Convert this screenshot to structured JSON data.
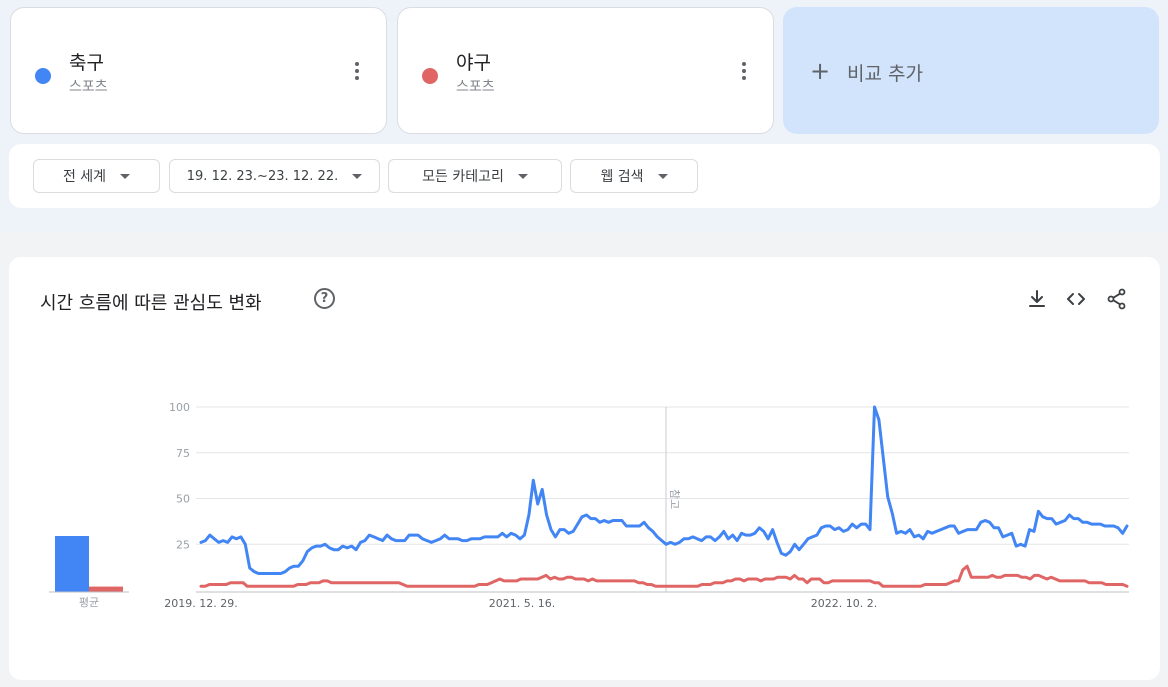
{
  "terms": [
    {
      "name": "축구",
      "category": "스포츠",
      "color": "#4285f4"
    },
    {
      "name": "야구",
      "category": "스포츠",
      "color": "#e06666"
    }
  ],
  "compare": {
    "label": "비교 추가",
    "icon": "plus-icon"
  },
  "filters": {
    "region": "전 세계",
    "date_range": "19. 12. 23.~23. 12. 22.",
    "category": "모든 카테고리",
    "search_type": "웹 검색"
  },
  "chart_section": {
    "title": "시간 흐름에 따른 관심도 변화",
    "actions": [
      "download-icon",
      "embed-icon",
      "share-icon"
    ]
  },
  "chart_data": {
    "type": "line",
    "y_ticks": [
      "100",
      "75",
      "50",
      "25"
    ],
    "ylim": [
      0,
      100
    ],
    "x_tick_labels": [
      "2019. 12. 29.",
      "2021. 5. 16.",
      "2022. 10. 2."
    ],
    "note_label": "참고",
    "average_label": "평균",
    "averages": [
      31,
      3
    ],
    "series": [
      {
        "color": "#4285f4",
        "values": [
          26,
          27,
          30,
          28,
          26,
          27,
          26,
          29,
          28,
          29,
          25,
          12,
          10,
          9,
          9,
          9,
          9,
          9,
          9,
          10,
          12,
          13,
          13,
          16,
          21,
          23,
          24,
          24,
          25,
          23,
          22,
          22,
          24,
          23,
          24,
          22,
          26,
          27,
          30,
          29,
          28,
          27,
          30,
          28,
          27,
          27,
          27,
          30,
          30,
          30,
          28,
          27,
          26,
          27,
          28,
          30,
          28,
          28,
          28,
          27,
          27,
          28,
          28,
          28,
          29,
          29,
          29,
          29,
          31,
          29,
          31,
          30,
          28,
          30,
          41,
          60,
          47,
          55,
          41,
          33,
          29,
          33,
          33,
          31,
          32,
          36,
          40,
          41,
          39,
          39,
          37,
          38,
          37,
          38,
          38,
          38,
          35,
          35,
          35,
          35,
          37,
          34,
          32,
          29,
          27,
          25,
          26,
          25,
          26,
          28,
          28,
          29,
          28,
          27,
          29,
          29,
          27,
          29,
          32,
          28,
          30,
          27,
          31,
          30,
          30,
          31,
          34,
          32,
          28,
          33,
          26,
          20,
          19,
          21,
          25,
          22,
          25,
          28,
          29,
          30,
          34,
          35,
          35,
          33,
          34,
          32,
          33,
          36,
          34,
          36,
          36,
          33,
          100,
          93,
          72,
          51,
          42,
          31,
          32,
          31,
          33,
          29,
          30,
          28,
          32,
          31,
          32,
          33,
          34,
          35,
          35,
          31,
          32,
          33,
          33,
          33,
          37,
          38,
          37,
          34,
          34,
          29,
          30,
          31,
          24,
          25,
          24,
          33,
          32,
          43,
          40,
          39,
          39,
          36,
          37,
          38,
          41,
          39,
          39,
          37,
          37,
          36,
          36,
          36,
          35,
          35,
          35,
          34,
          31,
          35
        ]
      },
      {
        "color": "#e06666",
        "values": [
          2,
          2,
          3,
          3,
          3,
          3,
          3,
          4,
          4,
          4,
          4,
          2,
          2,
          2,
          2,
          2,
          2,
          2,
          2,
          2,
          2,
          2,
          2,
          3,
          3,
          3,
          4,
          4,
          4,
          5,
          5,
          4,
          4,
          4,
          4,
          4,
          4,
          4,
          4,
          4,
          4,
          4,
          4,
          4,
          4,
          4,
          4,
          4,
          3,
          2,
          2,
          2,
          2,
          2,
          2,
          2,
          2,
          2,
          2,
          2,
          2,
          2,
          2,
          2,
          2,
          2,
          3,
          3,
          3,
          4,
          5,
          6,
          5,
          5,
          5,
          5,
          6,
          6,
          6,
          6,
          6,
          7,
          8,
          6,
          7,
          6,
          6,
          7,
          7,
          6,
          6,
          6,
          5,
          6,
          5,
          5,
          5,
          5,
          5,
          5,
          5,
          5,
          5,
          5,
          4,
          4,
          3,
          3,
          2,
          2,
          2,
          2,
          2,
          2,
          2,
          2,
          2,
          2,
          2,
          3,
          3,
          3,
          4,
          4,
          4,
          5,
          5,
          6,
          6,
          5,
          6,
          6,
          6,
          5,
          6,
          6,
          6,
          7,
          7,
          7,
          6,
          8,
          6,
          6,
          4,
          6,
          6,
          6,
          4,
          4,
          5,
          5,
          5,
          5,
          5,
          5,
          5,
          5,
          5,
          5,
          4,
          4,
          2,
          2,
          2,
          2,
          2,
          2,
          2,
          2,
          2,
          2,
          3,
          3,
          3,
          3,
          3,
          3,
          4,
          5,
          5,
          11,
          13,
          7,
          7,
          7,
          7,
          7,
          8,
          7,
          7,
          8,
          8,
          8,
          8,
          7,
          7,
          6,
          8,
          8,
          7,
          6,
          7,
          6,
          5,
          5,
          5,
          5,
          5,
          5,
          5,
          4,
          4,
          4,
          4,
          3,
          3,
          3,
          3,
          3,
          2
        ]
      }
    ]
  }
}
